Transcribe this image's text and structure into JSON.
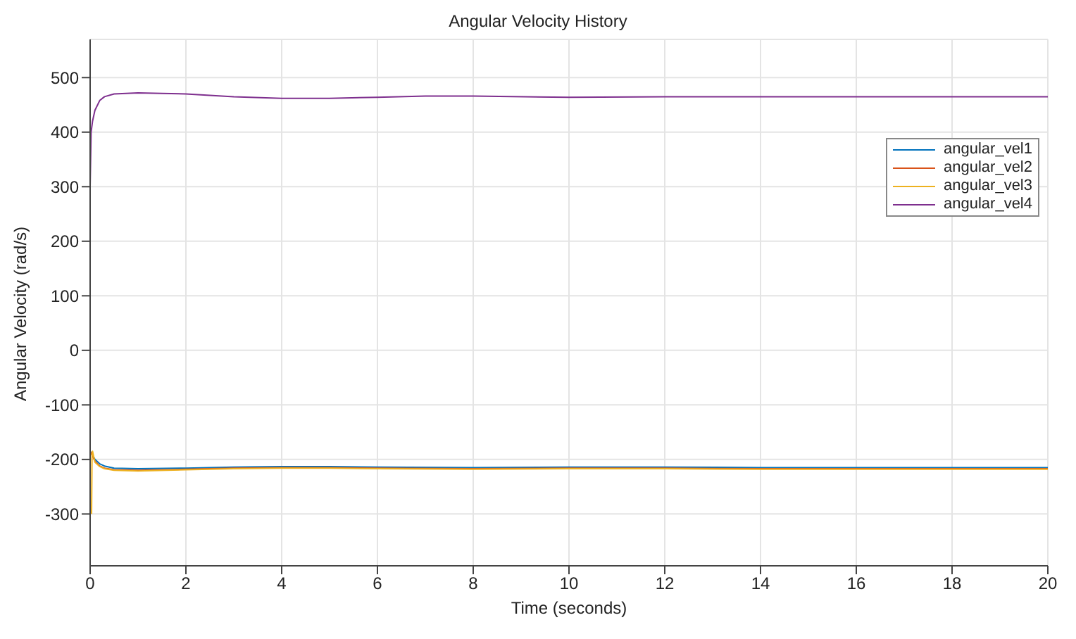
{
  "chart_data": {
    "type": "line",
    "title": "Angular Velocity History",
    "xlabel": "Time (seconds)",
    "ylabel": "Angular Velocity (rad/s)",
    "xlim": [
      0,
      20
    ],
    "xticks": [
      0,
      2,
      4,
      6,
      8,
      10,
      12,
      14,
      16,
      18,
      20
    ],
    "ylim": [
      -395,
      570
    ],
    "yticks": [
      -300,
      -200,
      -100,
      0,
      100,
      200,
      300,
      400,
      500
    ],
    "grid": true,
    "legend": "top right",
    "line_style": "solid",
    "marker": "none",
    "series": [
      {
        "name": "angular_vel1",
        "color": "#0072bd",
        "x": [
          0,
          0.1,
          0.2,
          0.3,
          0.5,
          1,
          2,
          3,
          4,
          5,
          6,
          8,
          10,
          12,
          14,
          16,
          18,
          20
        ],
        "values": [
          -185,
          -200,
          -208,
          -212,
          -216,
          -217,
          -216,
          -214,
          -213,
          -213,
          -214,
          -215,
          -214,
          -214,
          -215,
          -215,
          -215,
          -215
        ]
      },
      {
        "name": "angular_vel2",
        "color": "#d95319",
        "x": [
          0,
          0.1,
          0.2,
          0.3,
          0.5,
          1,
          2,
          3,
          4,
          5,
          6,
          8,
          10,
          12,
          14,
          16,
          18,
          20
        ],
        "values": [
          -185,
          -203,
          -212,
          -216,
          -219,
          -220,
          -218,
          -216,
          -215,
          -215,
          -216,
          -217,
          -216,
          -216,
          -217,
          -217,
          -217,
          -217
        ]
      },
      {
        "name": "angular_vel3",
        "color": "#edb120",
        "x": [
          0.03,
          0.04,
          0.05,
          0.1,
          0.2,
          0.3,
          0.5,
          1,
          2,
          3,
          4,
          5,
          6,
          8,
          10,
          12,
          14,
          16,
          18,
          20
        ],
        "values": [
          -300,
          -190,
          -185,
          -205,
          -213,
          -217,
          -220,
          -221,
          -219,
          -217,
          -216,
          -216,
          -217,
          -218,
          -217,
          -217,
          -218,
          -218,
          -218,
          -218
        ]
      },
      {
        "name": "angular_vel4",
        "color": "#7e2f8e",
        "x": [
          0,
          0.02,
          0.05,
          0.1,
          0.2,
          0.3,
          0.5,
          1,
          1.5,
          2,
          3,
          4,
          5,
          6,
          7,
          8,
          10,
          12,
          14,
          16,
          18,
          20
        ],
        "values": [
          300,
          400,
          420,
          440,
          458,
          465,
          470,
          472,
          471,
          470,
          465,
          462,
          462,
          464,
          466,
          466,
          464,
          465,
          465,
          465,
          465,
          465
        ]
      }
    ]
  }
}
